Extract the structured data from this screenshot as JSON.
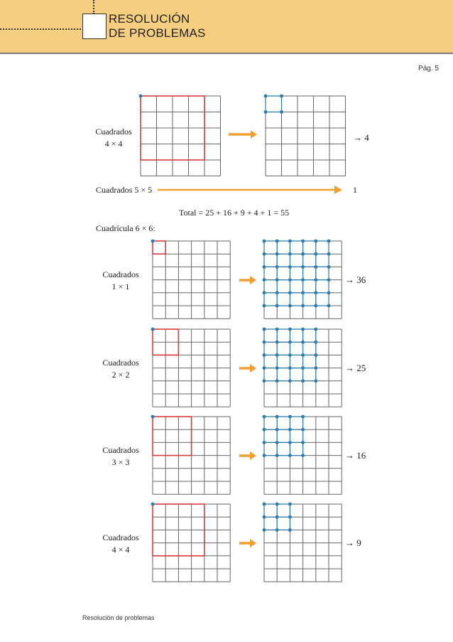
{
  "header": {
    "title_line1": "RESOLUCIÓN",
    "title_line2": "DE PROBLEMAS"
  },
  "page": "Pág. 5",
  "footer": "Resolución de problemas",
  "colors": {
    "band": "#f5ce7f",
    "arrow": "#f0a030",
    "outline": "#d83a3a",
    "dots": "#2b7bb0"
  },
  "top_section": {
    "label_line1": "Cuadrados",
    "label_line2": "4 × 4",
    "result": "→ 4",
    "label_5x5": "Cuadrados  5 × 5",
    "result_5x5": "1",
    "total": "Total = 25 + 16 + 9 + 4 + 1 = 55"
  },
  "grid6_title": "Cuadrícula 6 × 6:",
  "rows": [
    {
      "label_line1": "Cuadrados",
      "label_line2": "1 × 1",
      "result": "→ 36",
      "size": 1
    },
    {
      "label_line1": "Cuadrados",
      "label_line2": "2 × 2",
      "result": "→ 25",
      "size": 2
    },
    {
      "label_line1": "Cuadrados",
      "label_line2": "3 × 3",
      "result": "→ 16",
      "size": 3
    },
    {
      "label_line1": "Cuadrados",
      "label_line2": "4 × 4",
      "result": "→ 9",
      "size": 4
    }
  ]
}
